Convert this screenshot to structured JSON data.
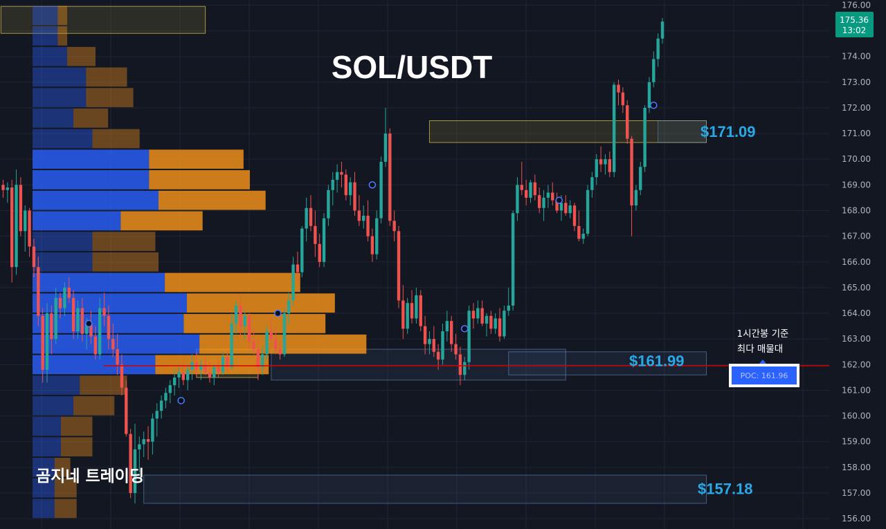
{
  "title": "SOL/USDT",
  "watermark": "곰지네 트레이딩",
  "colors": {
    "background": "#131722",
    "grid": "#1f2433",
    "up": "#26a69a",
    "down": "#ef5350",
    "vp_buy": "#2962ff",
    "vp_sell": "#f7931a",
    "poc_line": "#d50000",
    "level_label": "#29a9e8",
    "price_tag": "#089981"
  },
  "price_axis": {
    "min": 155.6,
    "max": 176.2,
    "ticks": [
      "156.00",
      "157.00",
      "158.00",
      "159.00",
      "160.00",
      "161.00",
      "162.00",
      "163.00",
      "164.00",
      "165.00",
      "166.00",
      "167.00",
      "168.00",
      "169.00",
      "170.00",
      "171.00",
      "172.00",
      "173.00",
      "174.00",
      "175.00",
      "176.00"
    ]
  },
  "current_price": {
    "price": "175.36",
    "time": "13:02",
    "value": 175.36
  },
  "annotations": {
    "level_high": {
      "label": "$171.09",
      "value": 171.09
    },
    "level_mid": {
      "label": "$161.99",
      "value": 161.99
    },
    "level_low": {
      "label": "$157.18",
      "value": 157.18
    },
    "poc_note_line1": "1시간봉 기준",
    "poc_note_line2": "최다 매물대",
    "poc_badge": "POC: 161.96",
    "poc_value": 161.96
  },
  "chart_data": {
    "type": "candlestick",
    "symbol": "SOL/USDT",
    "y_range": [
      155.6,
      176.2
    ],
    "poc": 161.96,
    "volume_profile": [
      {
        "price": 175.6,
        "buy": 0.08,
        "sell": 0.03
      },
      {
        "price": 174.8,
        "buy": 0.08,
        "sell": 0.03
      },
      {
        "price": 174.0,
        "buy": 0.11,
        "sell": 0.09
      },
      {
        "price": 173.2,
        "buy": 0.17,
        "sell": 0.13
      },
      {
        "price": 172.4,
        "buy": 0.17,
        "sell": 0.15
      },
      {
        "price": 171.6,
        "buy": 0.13,
        "sell": 0.11
      },
      {
        "price": 170.8,
        "buy": 0.19,
        "sell": 0.15
      },
      {
        "price": 170.0,
        "buy": 0.37,
        "sell": 0.3
      },
      {
        "price": 169.2,
        "buy": 0.37,
        "sell": 0.32
      },
      {
        "price": 168.4,
        "buy": 0.4,
        "sell": 0.34
      },
      {
        "price": 167.6,
        "buy": 0.28,
        "sell": 0.26
      },
      {
        "price": 166.8,
        "buy": 0.19,
        "sell": 0.2
      },
      {
        "price": 166.0,
        "buy": 0.19,
        "sell": 0.21
      },
      {
        "price": 165.2,
        "buy": 0.42,
        "sell": 0.43
      },
      {
        "price": 164.4,
        "buy": 0.49,
        "sell": 0.47
      },
      {
        "price": 163.6,
        "buy": 0.48,
        "sell": 0.45
      },
      {
        "price": 162.8,
        "buy": 0.53,
        "sell": 0.53
      },
      {
        "price": 162.0,
        "buy": 0.39,
        "sell": 0.36
      },
      {
        "price": 161.2,
        "buy": 0.15,
        "sell": 0.15
      },
      {
        "price": 160.4,
        "buy": 0.13,
        "sell": 0.13
      },
      {
        "price": 159.6,
        "buy": 0.09,
        "sell": 0.1
      },
      {
        "price": 158.8,
        "buy": 0.09,
        "sell": 0.1
      },
      {
        "price": 158.0,
        "buy": 0.07,
        "sell": 0.05
      },
      {
        "price": 157.2,
        "buy": 0.07,
        "sell": 0.07
      },
      {
        "price": 156.4,
        "buy": 0.07,
        "sell": 0.07
      }
    ],
    "zones": [
      {
        "name": "zone-top-left",
        "t0": -0.5,
        "t1": 46,
        "low": 174.9,
        "high": 175.95,
        "kind": "amber"
      },
      {
        "name": "zone-171",
        "t0": 97,
        "t1": 160,
        "low": 170.65,
        "high": 171.5,
        "kind": "amber"
      },
      {
        "name": "zone-171-box",
        "t0": 149,
        "t1": 160,
        "low": 170.65,
        "high": 171.5,
        "kind": "blue"
      },
      {
        "name": "zone-162-left",
        "t0": 44,
        "t1": 58,
        "low": 161.5,
        "high": 162.6,
        "kind": "amber"
      },
      {
        "name": "zone-162",
        "t0": 61,
        "t1": 128,
        "low": 161.4,
        "high": 162.6,
        "kind": "blue"
      },
      {
        "name": "zone-162-right",
        "t0": 115,
        "t1": 160,
        "low": 161.6,
        "high": 162.5,
        "kind": "blue"
      },
      {
        "name": "zone-157",
        "t0": 32,
        "t1": 160,
        "low": 156.6,
        "high": 157.7,
        "kind": "blue"
      }
    ],
    "markers": [
      {
        "t": 19.5,
        "price": 163.6
      },
      {
        "t": 40.5,
        "price": 160.6
      },
      {
        "t": 62.5,
        "price": 164.0
      },
      {
        "t": 84,
        "price": 169.0
      },
      {
        "t": 105,
        "price": 163.4
      },
      {
        "t": 126.5,
        "price": 168.4
      },
      {
        "t": 148,
        "price": 172.1
      }
    ],
    "candles": [
      [
        169.0,
        169.2,
        168.5,
        168.8
      ],
      [
        168.8,
        169.1,
        168.3,
        168.9
      ],
      [
        168.9,
        169.2,
        165.2,
        165.8
      ],
      [
        165.8,
        169.6,
        165.5,
        169.0
      ],
      [
        169.0,
        169.3,
        167.0,
        167.2
      ],
      [
        167.2,
        168.2,
        166.4,
        168.0
      ],
      [
        168.0,
        168.1,
        166.2,
        166.6
      ],
      [
        166.6,
        166.9,
        165.4,
        165.8
      ],
      [
        165.8,
        166.2,
        163.5,
        163.9
      ],
      [
        163.9,
        164.2,
        161.3,
        161.8
      ],
      [
        161.8,
        164.4,
        161.3,
        164.0
      ],
      [
        164.0,
        164.3,
        162.4,
        163.0
      ],
      [
        163.0,
        165.0,
        162.8,
        164.6
      ],
      [
        164.6,
        164.8,
        163.8,
        164.2
      ],
      [
        164.2,
        165.2,
        163.9,
        165.0
      ],
      [
        165.0,
        165.4,
        164.4,
        164.6
      ],
      [
        164.6,
        164.9,
        163.0,
        163.3
      ],
      [
        163.3,
        164.5,
        163.0,
        164.2
      ],
      [
        164.2,
        164.6,
        162.9,
        163.2
      ],
      [
        163.2,
        163.8,
        162.6,
        163.6
      ],
      [
        163.6,
        164.1,
        162.8,
        163.1
      ],
      [
        163.1,
        163.5,
        162.2,
        162.4
      ],
      [
        162.4,
        164.6,
        162.2,
        164.2
      ],
      [
        164.2,
        164.8,
        163.5,
        163.9
      ],
      [
        163.9,
        164.3,
        162.6,
        163.0
      ],
      [
        163.0,
        163.6,
        162.3,
        162.6
      ],
      [
        162.6,
        163.2,
        161.6,
        162.0
      ],
      [
        162.0,
        162.4,
        160.8,
        161.1
      ],
      [
        161.1,
        161.4,
        159.2,
        159.3
      ],
      [
        159.3,
        159.5,
        156.8,
        157.0
      ],
      [
        157.0,
        159.7,
        156.6,
        158.7
      ],
      [
        158.7,
        159.2,
        157.8,
        158.9
      ],
      [
        158.9,
        159.4,
        158.4,
        159.1
      ],
      [
        159.1,
        159.6,
        158.3,
        159.0
      ],
      [
        159.0,
        160.1,
        158.5,
        159.9
      ],
      [
        159.9,
        160.5,
        159.2,
        160.2
      ],
      [
        160.2,
        160.8,
        159.9,
        160.6
      ],
      [
        160.6,
        161.1,
        160.3,
        160.9
      ],
      [
        160.9,
        161.4,
        160.5,
        161.2
      ],
      [
        161.2,
        161.8,
        160.8,
        161.5
      ],
      [
        161.5,
        161.9,
        161.1,
        161.7
      ],
      [
        161.7,
        162.1,
        161.2,
        161.4
      ],
      [
        161.4,
        162.0,
        161.0,
        161.8
      ],
      [
        161.8,
        162.4,
        161.4,
        162.1
      ],
      [
        162.1,
        162.5,
        161.5,
        161.8
      ],
      [
        161.8,
        162.2,
        161.4,
        162.0
      ],
      [
        162.0,
        162.3,
        161.6,
        161.7
      ],
      [
        161.7,
        162.1,
        161.3,
        161.5
      ],
      [
        161.5,
        162.0,
        161.2,
        161.9
      ],
      [
        161.9,
        162.2,
        161.5,
        161.7
      ],
      [
        161.7,
        162.5,
        161.6,
        162.3
      ],
      [
        162.3,
        162.5,
        161.7,
        161.9
      ],
      [
        161.9,
        164.0,
        161.8,
        163.6
      ],
      [
        163.6,
        164.5,
        163.2,
        164.3
      ],
      [
        164.3,
        164.7,
        163.1,
        163.5
      ],
      [
        163.5,
        164.1,
        163.0,
        163.9
      ],
      [
        163.9,
        164.0,
        162.6,
        162.9
      ],
      [
        162.9,
        163.4,
        162.4,
        162.6
      ],
      [
        162.6,
        163.0,
        161.4,
        161.9
      ],
      [
        161.9,
        162.7,
        161.6,
        162.4
      ],
      [
        162.4,
        163.5,
        162.2,
        163.3
      ],
      [
        163.3,
        163.8,
        162.8,
        163.0
      ],
      [
        163.0,
        163.5,
        162.4,
        162.6
      ],
      [
        162.6,
        162.9,
        162.2,
        162.4
      ],
      [
        162.4,
        164.2,
        162.3,
        164.0
      ],
      [
        164.0,
        164.8,
        163.6,
        164.5
      ],
      [
        164.5,
        166.2,
        164.3,
        165.9
      ],
      [
        165.9,
        166.4,
        165.3,
        165.6
      ],
      [
        165.6,
        167.4,
        165.4,
        167.3
      ],
      [
        167.3,
        168.5,
        166.8,
        168.1
      ],
      [
        168.1,
        168.6,
        167.2,
        167.4
      ],
      [
        167.4,
        168.0,
        166.2,
        166.7
      ],
      [
        166.7,
        167.1,
        165.8,
        166.0
      ],
      [
        166.0,
        167.9,
        165.8,
        167.7
      ],
      [
        167.7,
        169.0,
        167.4,
        168.8
      ],
      [
        168.8,
        169.5,
        168.2,
        169.2
      ],
      [
        169.2,
        169.8,
        168.7,
        169.5
      ],
      [
        169.5,
        169.9,
        168.9,
        169.4
      ],
      [
        169.4,
        169.6,
        168.4,
        168.6
      ],
      [
        168.6,
        169.3,
        168.2,
        169.1
      ],
      [
        169.1,
        169.5,
        167.8,
        168.0
      ],
      [
        168.0,
        168.6,
        167.4,
        167.6
      ],
      [
        167.6,
        168.2,
        167.3,
        167.8
      ],
      [
        167.8,
        168.4,
        166.8,
        167.0
      ],
      [
        167.0,
        167.3,
        166.0,
        166.3
      ],
      [
        166.3,
        168.0,
        166.1,
        167.7
      ],
      [
        167.7,
        170.1,
        167.5,
        169.9
      ],
      [
        169.9,
        172.0,
        169.7,
        171.0
      ],
      [
        171.0,
        171.2,
        167.4,
        167.6
      ],
      [
        167.6,
        168.0,
        166.8,
        167.2
      ],
      [
        167.2,
        167.4,
        164.2,
        164.5
      ],
      [
        164.5,
        165.1,
        163.0,
        163.4
      ],
      [
        163.4,
        164.6,
        163.2,
        164.4
      ],
      [
        164.4,
        164.9,
        163.6,
        163.8
      ],
      [
        163.8,
        165.0,
        163.6,
        164.7
      ],
      [
        164.7,
        164.9,
        163.3,
        163.5
      ],
      [
        163.5,
        163.9,
        162.4,
        162.8
      ],
      [
        162.8,
        163.3,
        162.4,
        163.0
      ],
      [
        163.0,
        163.5,
        162.3,
        162.5
      ],
      [
        162.5,
        162.8,
        161.8,
        162.2
      ],
      [
        162.2,
        163.6,
        162.0,
        163.3
      ],
      [
        163.3,
        164.1,
        162.9,
        163.7
      ],
      [
        163.7,
        163.9,
        162.5,
        162.8
      ],
      [
        162.8,
        163.2,
        162.2,
        162.4
      ],
      [
        162.4,
        162.7,
        161.2,
        161.6
      ],
      [
        161.6,
        162.3,
        161.4,
        162.1
      ],
      [
        162.1,
        164.3,
        161.8,
        164.1
      ],
      [
        164.1,
        164.4,
        163.4,
        163.8
      ],
      [
        163.8,
        164.5,
        163.6,
        164.2
      ],
      [
        164.2,
        164.5,
        163.5,
        163.6
      ],
      [
        163.6,
        164.0,
        163.1,
        163.9
      ],
      [
        163.9,
        164.1,
        163.2,
        163.4
      ],
      [
        163.4,
        164.0,
        163.2,
        163.8
      ],
      [
        163.8,
        164.2,
        162.9,
        163.1
      ],
      [
        163.1,
        164.3,
        163.0,
        164.1
      ],
      [
        164.1,
        165.0,
        163.9,
        164.3
      ],
      [
        164.3,
        168.0,
        164.1,
        167.9
      ],
      [
        167.9,
        169.3,
        167.6,
        169.0
      ],
      [
        169.0,
        169.9,
        168.6,
        168.8
      ],
      [
        168.8,
        169.2,
        168.2,
        168.5
      ],
      [
        168.5,
        169.2,
        168.3,
        169.1
      ],
      [
        169.1,
        169.4,
        168.4,
        168.6
      ],
      [
        168.6,
        168.9,
        167.9,
        168.1
      ],
      [
        168.1,
        168.8,
        167.6,
        168.5
      ],
      [
        168.5,
        169.0,
        168.1,
        168.7
      ],
      [
        168.7,
        169.1,
        168.2,
        168.4
      ],
      [
        168.4,
        168.7,
        167.9,
        168.0
      ],
      [
        168.0,
        168.6,
        167.6,
        168.3
      ],
      [
        168.3,
        168.6,
        167.8,
        167.9
      ],
      [
        167.9,
        168.4,
        167.7,
        168.2
      ],
      [
        168.2,
        168.3,
        167.2,
        167.4
      ],
      [
        167.4,
        168.0,
        166.8,
        166.9
      ],
      [
        166.9,
        167.3,
        166.7,
        167.1
      ],
      [
        167.1,
        169.0,
        167.0,
        168.8
      ],
      [
        168.8,
        169.5,
        168.5,
        169.3
      ],
      [
        169.3,
        170.2,
        169.0,
        170.0
      ],
      [
        170.0,
        170.5,
        169.5,
        169.8
      ],
      [
        169.8,
        170.2,
        169.4,
        170.0
      ],
      [
        170.0,
        170.3,
        169.3,
        169.5
      ],
      [
        169.5,
        173.0,
        169.3,
        172.9
      ],
      [
        172.9,
        173.1,
        172.1,
        172.6
      ],
      [
        172.6,
        172.8,
        171.8,
        172.1
      ],
      [
        172.1,
        172.3,
        170.6,
        170.8
      ],
      [
        170.8,
        170.9,
        167.0,
        168.2
      ],
      [
        168.2,
        169.0,
        168.0,
        168.8
      ],
      [
        168.8,
        169.9,
        168.6,
        169.7
      ],
      [
        169.7,
        172.1,
        169.5,
        172.0
      ],
      [
        172.0,
        173.2,
        171.8,
        173.0
      ],
      [
        173.0,
        174.2,
        172.8,
        173.9
      ],
      [
        173.9,
        174.9,
        173.6,
        174.7
      ],
      [
        174.7,
        175.5,
        174.5,
        175.36
      ]
    ]
  }
}
